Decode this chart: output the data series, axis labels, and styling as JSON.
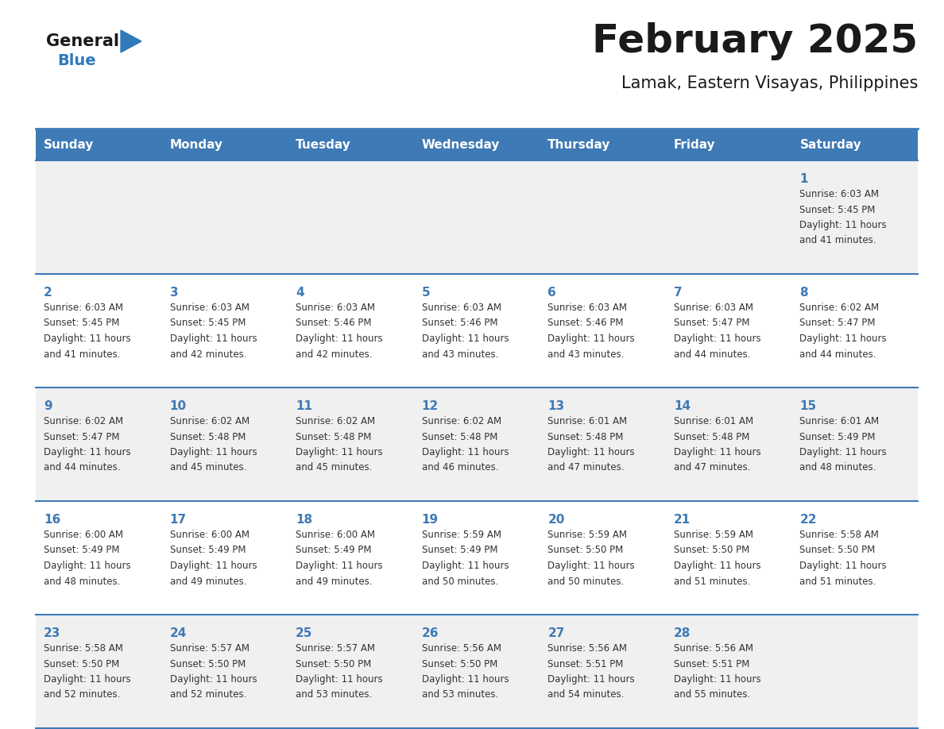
{
  "title": "February 2025",
  "subtitle": "Lamak, Eastern Visayas, Philippines",
  "days_of_week": [
    "Sunday",
    "Monday",
    "Tuesday",
    "Wednesday",
    "Thursday",
    "Friday",
    "Saturday"
  ],
  "header_bg_color": "#3e7ab5",
  "header_text_color": "#ffffff",
  "cell_bg_even": "#f0f0f0",
  "cell_bg_odd": "#ffffff",
  "day_number_color": "#3e7ab5",
  "info_text_color": "#333333",
  "divider_color": "#3e7ab5",
  "background_color": "#ffffff",
  "logo_general_color": "#1a1a1a",
  "logo_blue_color": "#2f7ab9",
  "calendar_data": [
    [
      null,
      null,
      null,
      null,
      null,
      null,
      {
        "day": "1",
        "sunrise": "6:03 AM",
        "sunset": "5:45 PM",
        "daylight_line1": "Daylight: 11 hours",
        "daylight_line2": "and 41 minutes."
      }
    ],
    [
      {
        "day": "2",
        "sunrise": "6:03 AM",
        "sunset": "5:45 PM",
        "daylight_line1": "Daylight: 11 hours",
        "daylight_line2": "and 41 minutes."
      },
      {
        "day": "3",
        "sunrise": "6:03 AM",
        "sunset": "5:45 PM",
        "daylight_line1": "Daylight: 11 hours",
        "daylight_line2": "and 42 minutes."
      },
      {
        "day": "4",
        "sunrise": "6:03 AM",
        "sunset": "5:46 PM",
        "daylight_line1": "Daylight: 11 hours",
        "daylight_line2": "and 42 minutes."
      },
      {
        "day": "5",
        "sunrise": "6:03 AM",
        "sunset": "5:46 PM",
        "daylight_line1": "Daylight: 11 hours",
        "daylight_line2": "and 43 minutes."
      },
      {
        "day": "6",
        "sunrise": "6:03 AM",
        "sunset": "5:46 PM",
        "daylight_line1": "Daylight: 11 hours",
        "daylight_line2": "and 43 minutes."
      },
      {
        "day": "7",
        "sunrise": "6:03 AM",
        "sunset": "5:47 PM",
        "daylight_line1": "Daylight: 11 hours",
        "daylight_line2": "and 44 minutes."
      },
      {
        "day": "8",
        "sunrise": "6:02 AM",
        "sunset": "5:47 PM",
        "daylight_line1": "Daylight: 11 hours",
        "daylight_line2": "and 44 minutes."
      }
    ],
    [
      {
        "day": "9",
        "sunrise": "6:02 AM",
        "sunset": "5:47 PM",
        "daylight_line1": "Daylight: 11 hours",
        "daylight_line2": "and 44 minutes."
      },
      {
        "day": "10",
        "sunrise": "6:02 AM",
        "sunset": "5:48 PM",
        "daylight_line1": "Daylight: 11 hours",
        "daylight_line2": "and 45 minutes."
      },
      {
        "day": "11",
        "sunrise": "6:02 AM",
        "sunset": "5:48 PM",
        "daylight_line1": "Daylight: 11 hours",
        "daylight_line2": "and 45 minutes."
      },
      {
        "day": "12",
        "sunrise": "6:02 AM",
        "sunset": "5:48 PM",
        "daylight_line1": "Daylight: 11 hours",
        "daylight_line2": "and 46 minutes."
      },
      {
        "day": "13",
        "sunrise": "6:01 AM",
        "sunset": "5:48 PM",
        "daylight_line1": "Daylight: 11 hours",
        "daylight_line2": "and 47 minutes."
      },
      {
        "day": "14",
        "sunrise": "6:01 AM",
        "sunset": "5:48 PM",
        "daylight_line1": "Daylight: 11 hours",
        "daylight_line2": "and 47 minutes."
      },
      {
        "day": "15",
        "sunrise": "6:01 AM",
        "sunset": "5:49 PM",
        "daylight_line1": "Daylight: 11 hours",
        "daylight_line2": "and 48 minutes."
      }
    ],
    [
      {
        "day": "16",
        "sunrise": "6:00 AM",
        "sunset": "5:49 PM",
        "daylight_line1": "Daylight: 11 hours",
        "daylight_line2": "and 48 minutes."
      },
      {
        "day": "17",
        "sunrise": "6:00 AM",
        "sunset": "5:49 PM",
        "daylight_line1": "Daylight: 11 hours",
        "daylight_line2": "and 49 minutes."
      },
      {
        "day": "18",
        "sunrise": "6:00 AM",
        "sunset": "5:49 PM",
        "daylight_line1": "Daylight: 11 hours",
        "daylight_line2": "and 49 minutes."
      },
      {
        "day": "19",
        "sunrise": "5:59 AM",
        "sunset": "5:49 PM",
        "daylight_line1": "Daylight: 11 hours",
        "daylight_line2": "and 50 minutes."
      },
      {
        "day": "20",
        "sunrise": "5:59 AM",
        "sunset": "5:50 PM",
        "daylight_line1": "Daylight: 11 hours",
        "daylight_line2": "and 50 minutes."
      },
      {
        "day": "21",
        "sunrise": "5:59 AM",
        "sunset": "5:50 PM",
        "daylight_line1": "Daylight: 11 hours",
        "daylight_line2": "and 51 minutes."
      },
      {
        "day": "22",
        "sunrise": "5:58 AM",
        "sunset": "5:50 PM",
        "daylight_line1": "Daylight: 11 hours",
        "daylight_line2": "and 51 minutes."
      }
    ],
    [
      {
        "day": "23",
        "sunrise": "5:58 AM",
        "sunset": "5:50 PM",
        "daylight_line1": "Daylight: 11 hours",
        "daylight_line2": "and 52 minutes."
      },
      {
        "day": "24",
        "sunrise": "5:57 AM",
        "sunset": "5:50 PM",
        "daylight_line1": "Daylight: 11 hours",
        "daylight_line2": "and 52 minutes."
      },
      {
        "day": "25",
        "sunrise": "5:57 AM",
        "sunset": "5:50 PM",
        "daylight_line1": "Daylight: 11 hours",
        "daylight_line2": "and 53 minutes."
      },
      {
        "day": "26",
        "sunrise": "5:56 AM",
        "sunset": "5:50 PM",
        "daylight_line1": "Daylight: 11 hours",
        "daylight_line2": "and 53 minutes."
      },
      {
        "day": "27",
        "sunrise": "5:56 AM",
        "sunset": "5:51 PM",
        "daylight_line1": "Daylight: 11 hours",
        "daylight_line2": "and 54 minutes."
      },
      {
        "day": "28",
        "sunrise": "5:56 AM",
        "sunset": "5:51 PM",
        "daylight_line1": "Daylight: 11 hours",
        "daylight_line2": "and 55 minutes."
      },
      null
    ]
  ]
}
